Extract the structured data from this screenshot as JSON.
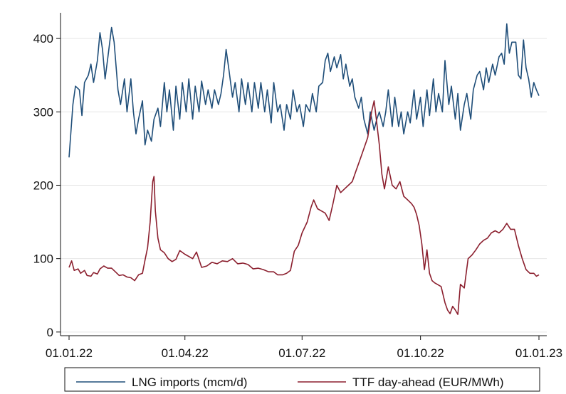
{
  "chart_data": {
    "type": "line",
    "title": "",
    "xlabel": "",
    "ylabel": "",
    "x_domain": [
      "2022-01-01",
      "2023-01-01"
    ],
    "ylim": [
      -5,
      435
    ],
    "y_ticks": [
      0,
      100,
      200,
      300,
      400
    ],
    "x_ticks": [
      {
        "date": "2022-01-01",
        "label": "01.01.22"
      },
      {
        "date": "2022-04-01",
        "label": "01.04.22"
      },
      {
        "date": "2022-07-01",
        "label": "01.07.22"
      },
      {
        "date": "2022-10-01",
        "label": "01.10.22"
      },
      {
        "date": "2023-01-01",
        "label": "01.01.23"
      }
    ],
    "grid": "horizontal",
    "legend_position": "bottom",
    "series": [
      {
        "name": "LNG imports (mcm/d)",
        "color": "#1f4e79",
        "points": [
          [
            "2022-01-01",
            238
          ],
          [
            "2022-01-04",
            310
          ],
          [
            "2022-01-06",
            335
          ],
          [
            "2022-01-09",
            330
          ],
          [
            "2022-01-11",
            295
          ],
          [
            "2022-01-13",
            340
          ],
          [
            "2022-01-16",
            350
          ],
          [
            "2022-01-18",
            365
          ],
          [
            "2022-01-20",
            340
          ],
          [
            "2022-01-23",
            370
          ],
          [
            "2022-01-25",
            408
          ],
          [
            "2022-01-27",
            385
          ],
          [
            "2022-01-29",
            345
          ],
          [
            "2022-01-31",
            372
          ],
          [
            "2022-02-03",
            415
          ],
          [
            "2022-02-05",
            395
          ],
          [
            "2022-02-08",
            330
          ],
          [
            "2022-02-10",
            310
          ],
          [
            "2022-02-13",
            345
          ],
          [
            "2022-02-15",
            300
          ],
          [
            "2022-02-18",
            345
          ],
          [
            "2022-02-20",
            300
          ],
          [
            "2022-02-22",
            270
          ],
          [
            "2022-02-24",
            290
          ],
          [
            "2022-02-27",
            315
          ],
          [
            "2022-03-01",
            255
          ],
          [
            "2022-03-03",
            275
          ],
          [
            "2022-03-06",
            260
          ],
          [
            "2022-03-08",
            290
          ],
          [
            "2022-03-11",
            305
          ],
          [
            "2022-03-13",
            280
          ],
          [
            "2022-03-16",
            340
          ],
          [
            "2022-03-18",
            300
          ],
          [
            "2022-03-20",
            330
          ],
          [
            "2022-03-23",
            275
          ],
          [
            "2022-03-25",
            335
          ],
          [
            "2022-03-28",
            290
          ],
          [
            "2022-03-30",
            340
          ],
          [
            "2022-04-02",
            300
          ],
          [
            "2022-04-04",
            345
          ],
          [
            "2022-04-07",
            290
          ],
          [
            "2022-04-09",
            335
          ],
          [
            "2022-04-12",
            300
          ],
          [
            "2022-04-14",
            342
          ],
          [
            "2022-04-17",
            310
          ],
          [
            "2022-04-19",
            330
          ],
          [
            "2022-04-22",
            305
          ],
          [
            "2022-04-24",
            330
          ],
          [
            "2022-04-27",
            310
          ],
          [
            "2022-04-29",
            325
          ],
          [
            "2022-05-01",
            350
          ],
          [
            "2022-05-03",
            385
          ],
          [
            "2022-05-05",
            360
          ],
          [
            "2022-05-08",
            320
          ],
          [
            "2022-05-10",
            340
          ],
          [
            "2022-05-13",
            300
          ],
          [
            "2022-05-15",
            345
          ],
          [
            "2022-05-18",
            310
          ],
          [
            "2022-05-20",
            340
          ],
          [
            "2022-05-23",
            300
          ],
          [
            "2022-05-25",
            340
          ],
          [
            "2022-05-28",
            305
          ],
          [
            "2022-05-30",
            340
          ],
          [
            "2022-06-02",
            300
          ],
          [
            "2022-06-04",
            330
          ],
          [
            "2022-06-07",
            285
          ],
          [
            "2022-06-09",
            340
          ],
          [
            "2022-06-12",
            300
          ],
          [
            "2022-06-14",
            310
          ],
          [
            "2022-06-17",
            275
          ],
          [
            "2022-06-19",
            310
          ],
          [
            "2022-06-22",
            290
          ],
          [
            "2022-06-24",
            330
          ],
          [
            "2022-06-27",
            300
          ],
          [
            "2022-06-29",
            310
          ],
          [
            "2022-07-02",
            280
          ],
          [
            "2022-07-04",
            310
          ],
          [
            "2022-07-07",
            300
          ],
          [
            "2022-07-09",
            325
          ],
          [
            "2022-07-12",
            300
          ],
          [
            "2022-07-14",
            335
          ],
          [
            "2022-07-17",
            340
          ],
          [
            "2022-07-19",
            370
          ],
          [
            "2022-07-21",
            380
          ],
          [
            "2022-07-23",
            355
          ],
          [
            "2022-07-26",
            375
          ],
          [
            "2022-07-28",
            360
          ],
          [
            "2022-07-31",
            378
          ],
          [
            "2022-08-02",
            345
          ],
          [
            "2022-08-04",
            365
          ],
          [
            "2022-08-07",
            335
          ],
          [
            "2022-08-09",
            345
          ],
          [
            "2022-08-11",
            320
          ],
          [
            "2022-08-14",
            305
          ],
          [
            "2022-08-16",
            320
          ],
          [
            "2022-08-18",
            290
          ],
          [
            "2022-08-21",
            270
          ],
          [
            "2022-08-23",
            300
          ],
          [
            "2022-08-26",
            275
          ],
          [
            "2022-08-28",
            290
          ],
          [
            "2022-08-30",
            300
          ],
          [
            "2022-09-02",
            280
          ],
          [
            "2022-09-04",
            300
          ],
          [
            "2022-09-06",
            330
          ],
          [
            "2022-09-09",
            280
          ],
          [
            "2022-09-11",
            320
          ],
          [
            "2022-09-14",
            280
          ],
          [
            "2022-09-16",
            300
          ],
          [
            "2022-09-18",
            270
          ],
          [
            "2022-09-21",
            300
          ],
          [
            "2022-09-23",
            285
          ],
          [
            "2022-09-26",
            330
          ],
          [
            "2022-09-28",
            290
          ],
          [
            "2022-10-01",
            320
          ],
          [
            "2022-10-03",
            280
          ],
          [
            "2022-10-06",
            330
          ],
          [
            "2022-10-08",
            295
          ],
          [
            "2022-10-11",
            345
          ],
          [
            "2022-10-13",
            300
          ],
          [
            "2022-10-15",
            325
          ],
          [
            "2022-10-18",
            300
          ],
          [
            "2022-10-20",
            370
          ],
          [
            "2022-10-23",
            310
          ],
          [
            "2022-10-25",
            335
          ],
          [
            "2022-10-28",
            290
          ],
          [
            "2022-10-30",
            325
          ],
          [
            "2022-11-01",
            275
          ],
          [
            "2022-11-04",
            310
          ],
          [
            "2022-11-06",
            325
          ],
          [
            "2022-11-09",
            290
          ],
          [
            "2022-11-11",
            330
          ],
          [
            "2022-11-14",
            350
          ],
          [
            "2022-11-16",
            355
          ],
          [
            "2022-11-19",
            330
          ],
          [
            "2022-11-21",
            360
          ],
          [
            "2022-11-23",
            340
          ],
          [
            "2022-11-26",
            365
          ],
          [
            "2022-11-28",
            350
          ],
          [
            "2022-12-01",
            375
          ],
          [
            "2022-12-03",
            380
          ],
          [
            "2022-12-05",
            365
          ],
          [
            "2022-12-07",
            420
          ],
          [
            "2022-12-09",
            380
          ],
          [
            "2022-12-11",
            395
          ],
          [
            "2022-12-14",
            395
          ],
          [
            "2022-12-16",
            350
          ],
          [
            "2022-12-18",
            345
          ],
          [
            "2022-12-20",
            398
          ],
          [
            "2022-12-22",
            360
          ],
          [
            "2022-12-24",
            345
          ],
          [
            "2022-12-26",
            320
          ],
          [
            "2022-12-28",
            340
          ],
          [
            "2022-12-30",
            330
          ],
          [
            "2023-01-01",
            322
          ]
        ]
      },
      {
        "name": "TTF day-ahead (EUR/MWh)",
        "color": "#8b1f2e",
        "points": [
          [
            "2022-01-01",
            88
          ],
          [
            "2022-01-03",
            97
          ],
          [
            "2022-01-05",
            84
          ],
          [
            "2022-01-08",
            86
          ],
          [
            "2022-01-10",
            80
          ],
          [
            "2022-01-13",
            84
          ],
          [
            "2022-01-15",
            77
          ],
          [
            "2022-01-18",
            76
          ],
          [
            "2022-01-20",
            81
          ],
          [
            "2022-01-23",
            79
          ],
          [
            "2022-01-25",
            86
          ],
          [
            "2022-01-28",
            90
          ],
          [
            "2022-01-31",
            87
          ],
          [
            "2022-02-03",
            87
          ],
          [
            "2022-02-06",
            82
          ],
          [
            "2022-02-09",
            77
          ],
          [
            "2022-02-12",
            78
          ],
          [
            "2022-02-15",
            75
          ],
          [
            "2022-02-18",
            74
          ],
          [
            "2022-02-21",
            70
          ],
          [
            "2022-02-24",
            78
          ],
          [
            "2022-02-27",
            80
          ],
          [
            "2022-03-01",
            98
          ],
          [
            "2022-03-03",
            115
          ],
          [
            "2022-03-05",
            150
          ],
          [
            "2022-03-07",
            205
          ],
          [
            "2022-03-08",
            212
          ],
          [
            "2022-03-09",
            165
          ],
          [
            "2022-03-11",
            128
          ],
          [
            "2022-03-13",
            112
          ],
          [
            "2022-03-16",
            108
          ],
          [
            "2022-03-19",
            100
          ],
          [
            "2022-03-22",
            96
          ],
          [
            "2022-03-25",
            99
          ],
          [
            "2022-03-28",
            111
          ],
          [
            "2022-04-01",
            106
          ],
          [
            "2022-04-04",
            103
          ],
          [
            "2022-04-07",
            100
          ],
          [
            "2022-04-10",
            109
          ],
          [
            "2022-04-14",
            88
          ],
          [
            "2022-04-18",
            90
          ],
          [
            "2022-04-22",
            95
          ],
          [
            "2022-04-26",
            93
          ],
          [
            "2022-04-30",
            97
          ],
          [
            "2022-05-04",
            96
          ],
          [
            "2022-05-08",
            100
          ],
          [
            "2022-05-12",
            93
          ],
          [
            "2022-05-16",
            94
          ],
          [
            "2022-05-20",
            92
          ],
          [
            "2022-05-24",
            86
          ],
          [
            "2022-05-28",
            87
          ],
          [
            "2022-06-01",
            85
          ],
          [
            "2022-06-05",
            82
          ],
          [
            "2022-06-09",
            82
          ],
          [
            "2022-06-12",
            78
          ],
          [
            "2022-06-16",
            78
          ],
          [
            "2022-06-19",
            80
          ],
          [
            "2022-06-22",
            84
          ],
          [
            "2022-06-25",
            110
          ],
          [
            "2022-06-28",
            118
          ],
          [
            "2022-07-01",
            135
          ],
          [
            "2022-07-05",
            150
          ],
          [
            "2022-07-08",
            170
          ],
          [
            "2022-07-10",
            180
          ],
          [
            "2022-07-13",
            168
          ],
          [
            "2022-07-16",
            165
          ],
          [
            "2022-07-19",
            162
          ],
          [
            "2022-07-22",
            152
          ],
          [
            "2022-07-25",
            175
          ],
          [
            "2022-07-28",
            200
          ],
          [
            "2022-07-31",
            190
          ],
          [
            "2022-08-03",
            195
          ],
          [
            "2022-08-06",
            200
          ],
          [
            "2022-08-09",
            205
          ],
          [
            "2022-08-12",
            220
          ],
          [
            "2022-08-15",
            235
          ],
          [
            "2022-08-18",
            250
          ],
          [
            "2022-08-21",
            265
          ],
          [
            "2022-08-24",
            300
          ],
          [
            "2022-08-26",
            315
          ],
          [
            "2022-08-28",
            285
          ],
          [
            "2022-08-30",
            255
          ],
          [
            "2022-09-01",
            215
          ],
          [
            "2022-09-03",
            195
          ],
          [
            "2022-09-06",
            225
          ],
          [
            "2022-09-09",
            200
          ],
          [
            "2022-09-12",
            195
          ],
          [
            "2022-09-15",
            205
          ],
          [
            "2022-09-18",
            185
          ],
          [
            "2022-09-21",
            180
          ],
          [
            "2022-09-24",
            175
          ],
          [
            "2022-09-26",
            170
          ],
          [
            "2022-09-28",
            160
          ],
          [
            "2022-09-30",
            145
          ],
          [
            "2022-10-02",
            120
          ],
          [
            "2022-10-04",
            85
          ],
          [
            "2022-10-06",
            112
          ],
          [
            "2022-10-08",
            80
          ],
          [
            "2022-10-10",
            70
          ],
          [
            "2022-10-12",
            67
          ],
          [
            "2022-10-14",
            65
          ],
          [
            "2022-10-17",
            62
          ],
          [
            "2022-10-20",
            40
          ],
          [
            "2022-10-22",
            30
          ],
          [
            "2022-10-24",
            25
          ],
          [
            "2022-10-26",
            35
          ],
          [
            "2022-10-28",
            30
          ],
          [
            "2022-10-30",
            24
          ],
          [
            "2022-11-01",
            65
          ],
          [
            "2022-11-04",
            60
          ],
          [
            "2022-11-07",
            100
          ],
          [
            "2022-11-10",
            105
          ],
          [
            "2022-11-13",
            112
          ],
          [
            "2022-11-16",
            120
          ],
          [
            "2022-11-19",
            125
          ],
          [
            "2022-11-22",
            128
          ],
          [
            "2022-11-25",
            135
          ],
          [
            "2022-11-28",
            138
          ],
          [
            "2022-12-01",
            135
          ],
          [
            "2022-12-04",
            140
          ],
          [
            "2022-12-07",
            148
          ],
          [
            "2022-12-10",
            140
          ],
          [
            "2022-12-13",
            140
          ],
          [
            "2022-12-16",
            118
          ],
          [
            "2022-12-19",
            100
          ],
          [
            "2022-12-22",
            85
          ],
          [
            "2022-12-25",
            80
          ],
          [
            "2022-12-28",
            80
          ],
          [
            "2022-12-30",
            76
          ],
          [
            "2023-01-01",
            78
          ]
        ]
      }
    ]
  }
}
